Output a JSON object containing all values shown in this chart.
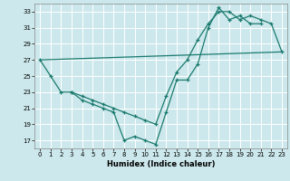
{
  "xlabel": "Humidex (Indice chaleur)",
  "bg_color": "#cce8ec",
  "grid_color": "#ffffff",
  "line_color": "#1a7a6e",
  "xlim": [
    -0.5,
    23.5
  ],
  "ylim": [
    16.0,
    34.0
  ],
  "xticks": [
    0,
    1,
    2,
    3,
    4,
    5,
    6,
    7,
    8,
    9,
    10,
    11,
    12,
    13,
    14,
    15,
    16,
    17,
    18,
    19,
    20,
    21,
    22,
    23
  ],
  "yticks": [
    17,
    19,
    21,
    23,
    25,
    27,
    29,
    31,
    33
  ],
  "series": [
    {
      "x": [
        0,
        1,
        2,
        3,
        4,
        5,
        6,
        7,
        8,
        9,
        10,
        11,
        12,
        13,
        14,
        15,
        16,
        17,
        18,
        19,
        20,
        21
      ],
      "y": [
        27.0,
        25.0,
        23.0,
        23.0,
        22.0,
        21.5,
        21.0,
        20.5,
        17.0,
        17.5,
        17.0,
        16.5,
        20.5,
        24.5,
        24.5,
        26.5,
        31.0,
        33.5,
        32.0,
        32.5,
        31.5,
        31.5
      ],
      "marker": true
    },
    {
      "x": [
        3,
        4,
        5,
        6,
        7,
        8,
        9,
        10,
        11,
        12,
        13,
        14,
        15,
        16,
        17,
        18,
        19,
        20,
        21,
        22,
        23
      ],
      "y": [
        23.0,
        22.5,
        22.0,
        21.5,
        21.0,
        20.5,
        20.0,
        19.5,
        19.0,
        22.5,
        25.5,
        27.0,
        29.5,
        31.5,
        33.0,
        33.0,
        32.0,
        32.5,
        32.0,
        31.5,
        28.0
      ],
      "marker": true
    },
    {
      "x": [
        0,
        23
      ],
      "y": [
        27.0,
        28.0
      ],
      "marker": false
    }
  ]
}
